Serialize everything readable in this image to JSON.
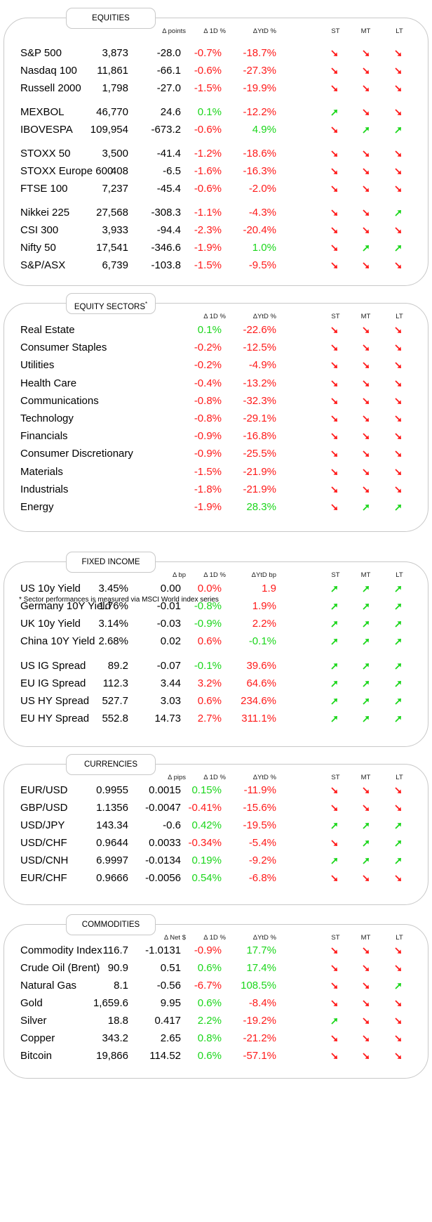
{
  "colors": {
    "up": "#1bd61b",
    "down": "#ff1a1a",
    "border": "#c8c8c8"
  },
  "footnote": "* Sector performances is measured via MSCI World index series",
  "sections": [
    {
      "key": "equities",
      "title": "EQUITIES",
      "headers": {
        "change": "Δ points",
        "d1": "Δ 1D %",
        "ytd": "ΔYtD %",
        "st": "ST",
        "mt": "MT",
        "lt": "LT"
      },
      "groups": [
        [
          {
            "name": "S&P 500",
            "level": "3,873",
            "change": "-28.0",
            "d1": "-0.7%",
            "d1_dir": "down",
            "ytd": "-18.7%",
            "ytd_dir": "down",
            "st": "down",
            "mt": "down",
            "lt": "down"
          },
          {
            "name": "Nasdaq 100",
            "level": "11,861",
            "change": "-66.1",
            "d1": "-0.6%",
            "d1_dir": "down",
            "ytd": "-27.3%",
            "ytd_dir": "down",
            "st": "down",
            "mt": "down",
            "lt": "down"
          },
          {
            "name": "Russell 2000",
            "level": "1,798",
            "change": "-27.0",
            "d1": "-1.5%",
            "d1_dir": "down",
            "ytd": "-19.9%",
            "ytd_dir": "down",
            "st": "down",
            "mt": "down",
            "lt": "down"
          }
        ],
        [
          {
            "name": "MEXBOL",
            "level": "46,770",
            "change": "24.6",
            "d1": "0.1%",
            "d1_dir": "up",
            "ytd": "-12.2%",
            "ytd_dir": "down",
            "st": "up",
            "mt": "down",
            "lt": "down"
          },
          {
            "name": "IBOVESPA",
            "level": "109,954",
            "change": "-673.2",
            "d1": "-0.6%",
            "d1_dir": "down",
            "ytd": "4.9%",
            "ytd_dir": "up",
            "st": "down",
            "mt": "up",
            "lt": "up"
          }
        ],
        [
          {
            "name": "STOXX 50",
            "level": "3,500",
            "change": "-41.4",
            "d1": "-1.2%",
            "d1_dir": "down",
            "ytd": "-18.6%",
            "ytd_dir": "down",
            "st": "down",
            "mt": "down",
            "lt": "down"
          },
          {
            "name": "STOXX Europe 600",
            "level": "408",
            "change": "-6.5",
            "d1": "-1.6%",
            "d1_dir": "down",
            "ytd": "-16.3%",
            "ytd_dir": "down",
            "st": "down",
            "mt": "down",
            "lt": "down"
          },
          {
            "name": "FTSE 100",
            "level": "7,237",
            "change": "-45.4",
            "d1": "-0.6%",
            "d1_dir": "down",
            "ytd": "-2.0%",
            "ytd_dir": "down",
            "st": "down",
            "mt": "down",
            "lt": "down"
          }
        ],
        [
          {
            "name": "Nikkei 225",
            "level": "27,568",
            "change": "-308.3",
            "d1": "-1.1%",
            "d1_dir": "down",
            "ytd": "-4.3%",
            "ytd_dir": "down",
            "st": "down",
            "mt": "down",
            "lt": "up"
          },
          {
            "name": "CSI 300",
            "level": "3,933",
            "change": "-94.4",
            "d1": "-2.3%",
            "d1_dir": "down",
            "ytd": "-20.4%",
            "ytd_dir": "down",
            "st": "down",
            "mt": "down",
            "lt": "down"
          },
          {
            "name": "Nifty  50",
            "level": "17,541",
            "change": "-346.6",
            "d1": "-1.9%",
            "d1_dir": "down",
            "ytd": "1.0%",
            "ytd_dir": "up",
            "st": "down",
            "mt": "up",
            "lt": "up"
          },
          {
            "name": "S&P/ASX",
            "level": "6,739",
            "change": "-103.8",
            "d1": "-1.5%",
            "d1_dir": "down",
            "ytd": "-9.5%",
            "ytd_dir": "down",
            "st": "down",
            "mt": "down",
            "lt": "down"
          }
        ]
      ]
    },
    {
      "key": "sectors",
      "title": "EQUITY SECTORS",
      "title_sup": "*",
      "headers": {
        "change": "",
        "d1": "Δ 1D %",
        "ytd": "ΔYtD %",
        "st": "ST",
        "mt": "MT",
        "lt": "LT"
      },
      "groups": [
        [
          {
            "name": "Real Estate",
            "level": "",
            "change": "",
            "d1": "0.1%",
            "d1_dir": "up",
            "ytd": "-22.6%",
            "ytd_dir": "down",
            "st": "down",
            "mt": "down",
            "lt": "down"
          },
          {
            "name": "Consumer Staples",
            "level": "",
            "change": "",
            "d1": "-0.2%",
            "d1_dir": "down",
            "ytd": "-12.5%",
            "ytd_dir": "down",
            "st": "down",
            "mt": "down",
            "lt": "down"
          },
          {
            "name": "Utilities",
            "level": "",
            "change": "",
            "d1": "-0.2%",
            "d1_dir": "down",
            "ytd": "-4.9%",
            "ytd_dir": "down",
            "st": "down",
            "mt": "down",
            "lt": "down"
          },
          {
            "name": "Health Care",
            "level": "",
            "change": "",
            "d1": "-0.4%",
            "d1_dir": "down",
            "ytd": "-13.2%",
            "ytd_dir": "down",
            "st": "down",
            "mt": "down",
            "lt": "down"
          },
          {
            "name": "Communications",
            "level": "",
            "change": "",
            "d1": "-0.8%",
            "d1_dir": "down",
            "ytd": "-32.3%",
            "ytd_dir": "down",
            "st": "down",
            "mt": "down",
            "lt": "down"
          },
          {
            "name": "Technology",
            "level": "",
            "change": "",
            "d1": "-0.8%",
            "d1_dir": "down",
            "ytd": "-29.1%",
            "ytd_dir": "down",
            "st": "down",
            "mt": "down",
            "lt": "down"
          },
          {
            "name": "Financials",
            "level": "",
            "change": "",
            "d1": "-0.9%",
            "d1_dir": "down",
            "ytd": "-16.8%",
            "ytd_dir": "down",
            "st": "down",
            "mt": "down",
            "lt": "down"
          },
          {
            "name": "Consumer Discretionary",
            "level": "",
            "change": "",
            "d1": "-0.9%",
            "d1_dir": "down",
            "ytd": "-25.5%",
            "ytd_dir": "down",
            "st": "down",
            "mt": "down",
            "lt": "down"
          },
          {
            "name": "Materials",
            "level": "",
            "change": "",
            "d1": "-1.5%",
            "d1_dir": "down",
            "ytd": "-21.9%",
            "ytd_dir": "down",
            "st": "down",
            "mt": "down",
            "lt": "down"
          },
          {
            "name": "Industrials",
            "level": "",
            "change": "",
            "d1": "-1.8%",
            "d1_dir": "down",
            "ytd": "-21.9%",
            "ytd_dir": "down",
            "st": "down",
            "mt": "down",
            "lt": "down"
          },
          {
            "name": "Energy",
            "level": "",
            "change": "",
            "d1": "-1.9%",
            "d1_dir": "down",
            "ytd": "28.3%",
            "ytd_dir": "up",
            "st": "down",
            "mt": "up",
            "lt": "up"
          }
        ]
      ]
    },
    {
      "key": "fixed_income",
      "title": "FIXED INCOME",
      "headers": {
        "change": "Δ bp",
        "d1": "Δ 1D %",
        "ytd": "ΔYtD bp",
        "st": "ST",
        "mt": "MT",
        "lt": "LT"
      },
      "groups": [
        [
          {
            "name": "US 10y Yield",
            "level": "3.45%",
            "change": "0.00",
            "d1": "0.0%",
            "d1_dir": "down",
            "ytd": "1.9",
            "ytd_dir": "down",
            "st": "up",
            "mt": "up",
            "lt": "up"
          },
          {
            "name": "Germany 10Y Yield",
            "level": "1.76%",
            "change": "-0.01",
            "d1": "-0.8%",
            "d1_dir": "up",
            "ytd": "1.9%",
            "ytd_dir": "down",
            "st": "up",
            "mt": "up",
            "lt": "up"
          },
          {
            "name": "UK 10y Yield",
            "level": "3.14%",
            "change": "-0.03",
            "d1": "-0.9%",
            "d1_dir": "up",
            "ytd": "2.2%",
            "ytd_dir": "down",
            "st": "up",
            "mt": "up",
            "lt": "up"
          },
          {
            "name": "China 10Y Yield",
            "level": "2.68%",
            "change": "0.02",
            "d1": "0.6%",
            "d1_dir": "down",
            "ytd": "-0.1%",
            "ytd_dir": "up",
            "st": "up",
            "mt": "up",
            "lt": "up"
          }
        ],
        [
          {
            "name": "US IG Spread",
            "level": "89.2",
            "change": "-0.07",
            "d1": "-0.1%",
            "d1_dir": "up",
            "ytd": "39.6%",
            "ytd_dir": "down",
            "st": "up",
            "mt": "up",
            "lt": "up"
          },
          {
            "name": "EU IG Spread",
            "level": "112.3",
            "change": "3.44",
            "d1": "3.2%",
            "d1_dir": "down",
            "ytd": "64.6%",
            "ytd_dir": "down",
            "st": "up",
            "mt": "up",
            "lt": "up"
          },
          {
            "name": "US HY Spread",
            "level": "527.7",
            "change": "3.03",
            "d1": "0.6%",
            "d1_dir": "down",
            "ytd": "234.6%",
            "ytd_dir": "down",
            "st": "up",
            "mt": "up",
            "lt": "up"
          },
          {
            "name": "EU HY Spread",
            "level": "552.8",
            "change": "14.73",
            "d1": "2.7%",
            "d1_dir": "down",
            "ytd": "311.1%",
            "ytd_dir": "down",
            "st": "up",
            "mt": "up",
            "lt": "up"
          }
        ]
      ]
    },
    {
      "key": "currencies",
      "title": "CURRENCIES",
      "headers": {
        "change": "Δ pips",
        "d1": "Δ 1D %",
        "ytd": "ΔYtD %",
        "st": "ST",
        "mt": "MT",
        "lt": "LT"
      },
      "groups": [
        [
          {
            "name": "EUR/USD",
            "level": "0.9955",
            "change": "0.0015",
            "d1": "0.15%",
            "d1_dir": "up",
            "ytd": "-11.9%",
            "ytd_dir": "down",
            "st": "down",
            "mt": "down",
            "lt": "down"
          },
          {
            "name": "GBP/USD",
            "level": "1.1356",
            "change": "-0.0047",
            "d1": "-0.41%",
            "d1_dir": "down",
            "ytd": "-15.6%",
            "ytd_dir": "down",
            "st": "down",
            "mt": "down",
            "lt": "down"
          },
          {
            "name": "USD/JPY",
            "level": "143.34",
            "change": "-0.6",
            "d1": "0.42%",
            "d1_dir": "up",
            "ytd": "-19.5%",
            "ytd_dir": "down",
            "st": "up",
            "mt": "up",
            "lt": "up"
          },
          {
            "name": "USD/CHF",
            "level": "0.9644",
            "change": "0.0033",
            "d1": "-0.34%",
            "d1_dir": "down",
            "ytd": "-5.4%",
            "ytd_dir": "down",
            "st": "down",
            "mt": "up",
            "lt": "up"
          },
          {
            "name": "USD/CNH",
            "level": "6.9997",
            "change": "-0.0134",
            "d1": "0.19%",
            "d1_dir": "up",
            "ytd": "-9.2%",
            "ytd_dir": "down",
            "st": "up",
            "mt": "up",
            "lt": "up"
          },
          {
            "name": "EUR/CHF",
            "level": "0.9666",
            "change": "-0.0056",
            "d1": "0.54%",
            "d1_dir": "up",
            "ytd": "-6.8%",
            "ytd_dir": "down",
            "st": "down",
            "mt": "down",
            "lt": "down"
          }
        ]
      ]
    },
    {
      "key": "commodities",
      "title": "COMMODITIES",
      "headers": {
        "change": "Δ Net $",
        "d1": "Δ 1D %",
        "ytd": "ΔYtD %",
        "st": "ST",
        "mt": "MT",
        "lt": "LT"
      },
      "groups": [
        [
          {
            "name": "Commodity Index",
            "level": "116.7",
            "change": "-1.0131",
            "d1": "-0.9%",
            "d1_dir": "down",
            "ytd": "17.7%",
            "ytd_dir": "up",
            "st": "down",
            "mt": "down",
            "lt": "down"
          },
          {
            "name": "Crude Oil (Brent)",
            "level": "90.9",
            "change": "0.51",
            "d1": "0.6%",
            "d1_dir": "up",
            "ytd": "17.4%",
            "ytd_dir": "up",
            "st": "down",
            "mt": "down",
            "lt": "down"
          },
          {
            "name": "Natural Gas",
            "level": "8.1",
            "change": "-0.56",
            "d1": "-6.7%",
            "d1_dir": "down",
            "ytd": "108.5%",
            "ytd_dir": "up",
            "st": "down",
            "mt": "down",
            "lt": "up"
          },
          {
            "name": "Gold",
            "level": "1,659.6",
            "change": "9.95",
            "d1": "0.6%",
            "d1_dir": "up",
            "ytd": "-8.4%",
            "ytd_dir": "down",
            "st": "down",
            "mt": "down",
            "lt": "down"
          },
          {
            "name": "Silver",
            "level": "18.8",
            "change": "0.417",
            "d1": "2.2%",
            "d1_dir": "up",
            "ytd": "-19.2%",
            "ytd_dir": "down",
            "st": "up",
            "mt": "down",
            "lt": "down"
          },
          {
            "name": "Copper",
            "level": "343.2",
            "change": "2.65",
            "d1": "0.8%",
            "d1_dir": "up",
            "ytd": "-21.2%",
            "ytd_dir": "down",
            "st": "down",
            "mt": "down",
            "lt": "down"
          },
          {
            "name": "Bitcoin",
            "level": "19,866",
            "change": "114.52",
            "d1": "0.6%",
            "d1_dir": "up",
            "ytd": "-57.1%",
            "ytd_dir": "down",
            "st": "down",
            "mt": "down",
            "lt": "down"
          }
        ]
      ]
    }
  ]
}
